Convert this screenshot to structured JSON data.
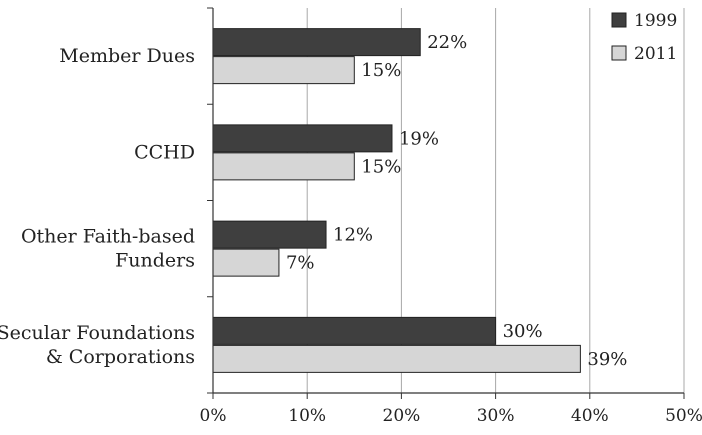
{
  "chart_data": {
    "type": "bar",
    "orientation": "horizontal",
    "title": "",
    "xlabel": "",
    "ylabel": "",
    "categories": [
      [
        "Member Dues"
      ],
      [
        "CCHD"
      ],
      [
        "Other Faith-based",
        "Funders"
      ],
      [
        "Secular Foundations",
        "& Corporations"
      ]
    ],
    "series": [
      {
        "name": "1999",
        "color": "#3f3f3f",
        "values": [
          22,
          19,
          12,
          30
        ],
        "value_labels": [
          "22%",
          "19%",
          "12%",
          "30%"
        ]
      },
      {
        "name": "2011",
        "color": "#d6d6d6",
        "values": [
          15,
          15,
          7,
          39
        ],
        "value_labels": [
          "15%",
          "15%",
          "7%",
          "39%"
        ]
      }
    ],
    "xlim": [
      0,
      50
    ],
    "x_ticks": [
      0,
      10,
      20,
      30,
      40,
      50
    ],
    "x_tick_labels": [
      "0%",
      "10%",
      "20%",
      "30%",
      "40%",
      "50%"
    ],
    "grid": "vertical",
    "legend_position": "top-right"
  }
}
